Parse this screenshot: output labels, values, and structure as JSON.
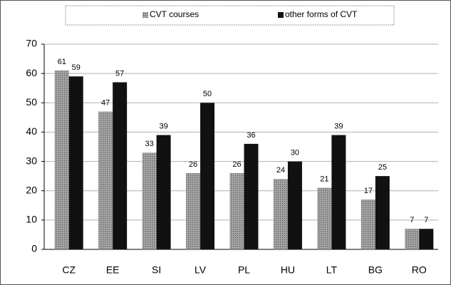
{
  "chart_data": {
    "type": "bar",
    "categories": [
      "CZ",
      "EE",
      "SI",
      "LV",
      "PL",
      "HU",
      "LT",
      "BG",
      "RO"
    ],
    "series": [
      {
        "name": "CVT courses",
        "color": "#8a8a8a",
        "values": [
          61,
          47,
          33,
          26,
          26,
          24,
          21,
          17,
          7
        ]
      },
      {
        "name": "other forms of CVT",
        "color": "#111111",
        "values": [
          59,
          57,
          39,
          50,
          36,
          30,
          39,
          25,
          7
        ]
      }
    ],
    "ylim": [
      0,
      70
    ],
    "yticks": [
      0,
      10,
      20,
      30,
      40,
      50,
      60,
      70
    ],
    "grid": true,
    "legend": "top"
  }
}
